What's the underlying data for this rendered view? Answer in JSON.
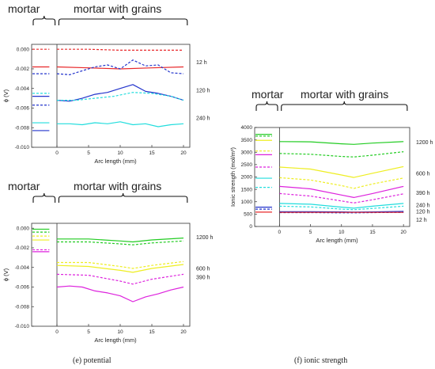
{
  "captions": {
    "e": "(e) potential",
    "f": "(f) ionic strength"
  },
  "chart_data": [
    {
      "id": "potential-top",
      "type": "line",
      "headers": {
        "left": "mortar",
        "right": "mortar with grains"
      },
      "xlabel": "Arc length (mm)",
      "ylabel": "ϕ (V)",
      "xlim": [
        -4,
        21
      ],
      "ylim": [
        -0.01,
        0.0005
      ],
      "xticks": [
        0,
        5,
        10,
        15,
        20
      ],
      "xtick_labels": [
        "0",
        "5",
        "10",
        "15",
        "20"
      ],
      "yticks": [
        0.0,
        -0.002,
        -0.004,
        -0.006,
        -0.008,
        -0.01
      ],
      "ytick_labels": [
        "0.000",
        "-0.002",
        "-0.004",
        "-0.006",
        "-0.008",
        "-0.010"
      ],
      "series": [
        {
          "color": "#e8282a",
          "dash": true,
          "label": "",
          "mortar": 0.0,
          "x": [
            0,
            5,
            10,
            15,
            20
          ],
          "y": [
            0.0,
            0.0,
            -0.0001,
            -0.0001,
            -0.0001
          ]
        },
        {
          "color": "#e8282a",
          "dash": false,
          "label": "12 h",
          "mortar": -0.0018,
          "x": [
            0,
            5,
            10,
            15,
            20
          ],
          "y": [
            -0.0018,
            -0.0019,
            -0.002,
            -0.0019,
            -0.0018
          ]
        },
        {
          "color": "#2233cc",
          "dash": true,
          "label": "",
          "mortar": -0.0025,
          "x": [
            0,
            2,
            4,
            6,
            8,
            10,
            12,
            14,
            16,
            18,
            20
          ],
          "y": [
            -0.0025,
            -0.0026,
            -0.0022,
            -0.0018,
            -0.0016,
            -0.002,
            -0.0011,
            -0.0017,
            -0.0016,
            -0.0024,
            -0.0025
          ]
        },
        {
          "color": "#2233cc",
          "dash": true,
          "label": "",
          "mortar": -0.0057,
          "x": [],
          "y": []
        },
        {
          "color": "#2233cc",
          "dash": false,
          "label": "120 h",
          "mortar": -0.0048,
          "x": [
            0,
            2,
            4,
            6,
            8,
            10,
            12,
            14,
            16,
            18,
            20
          ],
          "y": [
            -0.0052,
            -0.0053,
            -0.005,
            -0.0046,
            -0.0044,
            -0.004,
            -0.0036,
            -0.0043,
            -0.0045,
            -0.0048,
            -0.0052
          ]
        },
        {
          "color": "#22dddd",
          "dash": true,
          "label": "",
          "mortar": -0.0045,
          "x": [
            0,
            3,
            6,
            9,
            12,
            15,
            18,
            20
          ],
          "y": [
            -0.0052,
            -0.0052,
            -0.005,
            -0.0048,
            -0.0044,
            -0.0045,
            -0.0048,
            -0.0052
          ]
        },
        {
          "color": "#22dddd",
          "dash": false,
          "label": "240 h",
          "mortar": -0.0075,
          "x": [
            0,
            2,
            4,
            6,
            8,
            10,
            12,
            14,
            16,
            18,
            20
          ],
          "y": [
            -0.0076,
            -0.0076,
            -0.0077,
            -0.0075,
            -0.0076,
            -0.0074,
            -0.0077,
            -0.0076,
            -0.0079,
            -0.0077,
            -0.0076
          ]
        },
        {
          "color": "#2233cc",
          "dash": false,
          "label": "",
          "mortar": -0.0083,
          "x": [],
          "y": []
        }
      ]
    },
    {
      "id": "potential-bottom",
      "type": "line",
      "headers": {
        "left": "mortar",
        "right": "mortar with grains"
      },
      "xlabel": "Arc length (mm)",
      "ylabel": "ϕ (V)",
      "xlim": [
        -4,
        21
      ],
      "ylim": [
        -0.01,
        0.0005
      ],
      "xticks": [
        0,
        5,
        10,
        15,
        20
      ],
      "xtick_labels": [
        "0",
        "5",
        "10",
        "15",
        "20"
      ],
      "yticks": [
        0.0,
        -0.002,
        -0.004,
        -0.006,
        -0.008,
        -0.01
      ],
      "ytick_labels": [
        "0.000",
        "-0.002",
        "-0.004",
        "-0.006",
        "-0.008",
        "-0.010"
      ],
      "series": [
        {
          "color": "#22cc22",
          "dash": false,
          "label": "1200 h",
          "mortar": -0.0001,
          "x": [
            0,
            5,
            10,
            12,
            15,
            20
          ],
          "y": [
            -0.0011,
            -0.0011,
            -0.0013,
            -0.0014,
            -0.0012,
            -0.001
          ]
        },
        {
          "color": "#22cc22",
          "dash": true,
          "label": "",
          "mortar": -0.0004,
          "x": [
            0,
            5,
            10,
            12,
            15,
            20
          ],
          "y": [
            -0.0014,
            -0.0014,
            -0.0016,
            -0.0017,
            -0.0015,
            -0.0013
          ]
        },
        {
          "color": "#eeee22",
          "dash": true,
          "label": "",
          "mortar": -0.0008,
          "x": [
            0,
            5,
            10,
            12,
            15,
            20
          ],
          "y": [
            -0.0035,
            -0.0035,
            -0.0039,
            -0.0041,
            -0.0038,
            -0.0034
          ]
        },
        {
          "color": "#eeee22",
          "dash": false,
          "label": "600 h",
          "mortar": -0.0012,
          "x": [
            0,
            5,
            10,
            12,
            15,
            20
          ],
          "y": [
            -0.0038,
            -0.0039,
            -0.0043,
            -0.0045,
            -0.0041,
            -0.0037
          ]
        },
        {
          "color": "#dd22dd",
          "dash": true,
          "label": "390 h",
          "mortar": -0.0022,
          "x": [
            0,
            5,
            10,
            12,
            15,
            20
          ],
          "y": [
            -0.0047,
            -0.0048,
            -0.0054,
            -0.0057,
            -0.0052,
            -0.0047
          ]
        },
        {
          "color": "#dd22dd",
          "dash": false,
          "label": "",
          "mortar": -0.0024,
          "x": [
            0,
            2,
            4,
            6,
            8,
            10,
            12,
            14,
            16,
            18,
            20
          ],
          "y": [
            -0.006,
            -0.0059,
            -0.006,
            -0.0064,
            -0.0066,
            -0.0069,
            -0.0075,
            -0.007,
            -0.0067,
            -0.0063,
            -0.006
          ]
        }
      ]
    },
    {
      "id": "ionic-strength",
      "type": "line",
      "headers": {
        "left": "mortar",
        "right": "mortar with grains"
      },
      "xlabel": "Arc length (mm)",
      "ylabel": "Ionic strength (mol/m³)",
      "xlim": [
        -4,
        21
      ],
      "ylim": [
        0,
        4000
      ],
      "xticks": [
        0,
        5,
        10,
        15,
        20
      ],
      "xtick_labels": [
        "0",
        "5",
        "10",
        "15",
        "20"
      ],
      "yticks": [
        0,
        500,
        1000,
        1500,
        2000,
        2500,
        3000,
        3500,
        4000
      ],
      "ytick_labels": [
        "0",
        "500",
        "1000",
        "1500",
        "2000",
        "2500",
        "3000",
        "3500",
        "4000"
      ],
      "series": [
        {
          "color": "#22cc22",
          "dash": false,
          "label": "1200 h",
          "mortar": 3720,
          "x": [
            0,
            5,
            10,
            12,
            15,
            20
          ],
          "y": [
            3430,
            3420,
            3340,
            3320,
            3370,
            3430
          ]
        },
        {
          "color": "#22cc22",
          "dash": true,
          "label": "",
          "mortar": 3650,
          "x": [
            0,
            5,
            10,
            12,
            15,
            20
          ],
          "y": [
            2950,
            2920,
            2830,
            2810,
            2880,
            3020
          ]
        },
        {
          "color": "#eeee22",
          "dash": false,
          "label": "600 h",
          "mortar": 3480,
          "x": [
            0,
            5,
            10,
            12,
            15,
            20
          ],
          "y": [
            2400,
            2320,
            2080,
            1980,
            2150,
            2420
          ]
        },
        {
          "color": "#eeee22",
          "dash": true,
          "label": "",
          "mortar": 3050,
          "x": [
            0,
            5,
            10,
            12,
            15,
            20
          ],
          "y": [
            1970,
            1880,
            1650,
            1540,
            1720,
            1960
          ]
        },
        {
          "color": "#dd22dd",
          "dash": false,
          "label": "390 h",
          "mortar": 2900,
          "x": [
            0,
            5,
            10,
            12,
            15,
            20
          ],
          "y": [
            1620,
            1520,
            1270,
            1170,
            1330,
            1620
          ]
        },
        {
          "color": "#dd22dd",
          "dash": true,
          "label": "",
          "mortar": 2400,
          "x": [
            0,
            5,
            10,
            12,
            15,
            20
          ],
          "y": [
            1330,
            1230,
            1030,
            950,
            1080,
            1320
          ]
        },
        {
          "color": "#22dddd",
          "dash": false,
          "label": "240 h",
          "mortar": 1950,
          "x": [
            0,
            5,
            10,
            12,
            15,
            20
          ],
          "y": [
            930,
            900,
            780,
            740,
            820,
            930
          ]
        },
        {
          "color": "#22dddd",
          "dash": true,
          "label": "",
          "mortar": 1580,
          "x": [
            0,
            5,
            10,
            12,
            15,
            20
          ],
          "y": [
            820,
            790,
            700,
            680,
            730,
            820
          ]
        },
        {
          "color": "#2233cc",
          "dash": false,
          "label": "120 h",
          "mortar": 780,
          "x": [
            0,
            5,
            10,
            12,
            15,
            20
          ],
          "y": [
            600,
            600,
            590,
            580,
            590,
            610
          ]
        },
        {
          "color": "#2233cc",
          "dash": true,
          "label": "",
          "mortar": 700,
          "x": [
            0,
            5,
            10,
            12,
            15,
            20
          ],
          "y": [
            560,
            560,
            550,
            550,
            560,
            570
          ]
        },
        {
          "color": "#e8282a",
          "dash": false,
          "label": "12 h",
          "mortar": 580,
          "x": [
            0,
            5,
            10,
            12,
            15,
            20
          ],
          "y": [
            570,
            570,
            570,
            570,
            570,
            570
          ]
        }
      ]
    }
  ]
}
